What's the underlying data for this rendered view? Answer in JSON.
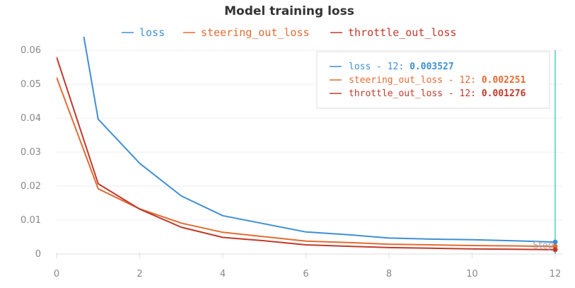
{
  "chart_data": {
    "type": "line",
    "title": "Model training loss",
    "xlabel": "",
    "ylabel": "",
    "xlim": [
      0,
      12
    ],
    "ylim": [
      0,
      0.06
    ],
    "x_ticks": [
      0,
      2,
      4,
      6,
      8,
      10,
      12
    ],
    "y_ticks": [
      0,
      0.01,
      0.02,
      0.03,
      0.04,
      0.05,
      0.06
    ],
    "y_tick_labels": [
      "0",
      "0.01",
      "0.02",
      "0.03",
      "0.04",
      "0.05",
      "0.06"
    ],
    "grid": true,
    "legend_position": "top",
    "series": [
      {
        "name": "loss",
        "color": "#3f8fd2",
        "x": [
          0,
          1,
          2,
          3,
          4,
          5,
          6,
          7,
          8,
          9,
          10,
          11,
          12
        ],
        "values": [
          0.11,
          0.0397,
          0.0267,
          0.0171,
          0.0113,
          0.0089,
          0.0065,
          0.0057,
          0.0047,
          0.0044,
          0.0042,
          0.0039,
          0.003527
        ]
      },
      {
        "name": "steering_out_loss",
        "color": "#e26b33",
        "x": [
          0,
          1,
          2,
          3,
          4,
          5,
          6,
          7,
          8,
          9,
          10,
          11,
          12
        ],
        "values": [
          0.052,
          0.0192,
          0.0133,
          0.0091,
          0.0064,
          0.0051,
          0.0038,
          0.0034,
          0.0029,
          0.0027,
          0.0025,
          0.0024,
          0.002251
        ]
      },
      {
        "name": "throttle_out_loss",
        "color": "#c0392b",
        "x": [
          0,
          1,
          2,
          3,
          4,
          5,
          6,
          7,
          8,
          9,
          10,
          11,
          12
        ],
        "values": [
          0.058,
          0.0207,
          0.0132,
          0.0079,
          0.0049,
          0.0039,
          0.0027,
          0.0023,
          0.0019,
          0.0017,
          0.0015,
          0.0014,
          0.001276
        ]
      }
    ],
    "tooltip": {
      "step": 12,
      "step_label": "Step",
      "entries": [
        {
          "label": "loss - 12:",
          "value": "0.003527"
        },
        {
          "label": "steering_out_loss - 12:",
          "value": "0.002251"
        },
        {
          "label": "throttle_out_loss - 12:",
          "value": "0.001276"
        }
      ]
    },
    "cursor_color": "#4ecdc4"
  }
}
